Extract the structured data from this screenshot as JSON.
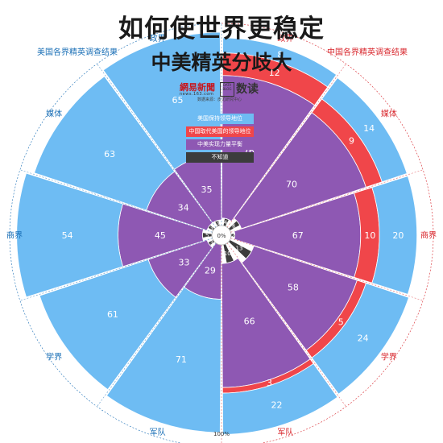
{
  "header": {
    "title": "如何使世界更稳定",
    "subtitle": "中美精英分歧大",
    "left_survey_label": "美国各界精英调查结果",
    "right_survey_label": "中国各界精英调查结果"
  },
  "brand": {
    "logo_text": "網易新聞",
    "logo_sub": "news.163.com",
    "data_box_text": "DATA BLOG",
    "product": "数读",
    "source": "数据来源：皮尤研究中心"
  },
  "colors": {
    "light_blue": "#6ebcf3",
    "red": "#f0464a",
    "purple": "#8e58b3",
    "dark": "#3c3c3c",
    "left_accent": "#1a6fb6",
    "right_accent": "#d8262c"
  },
  "chart_data": {
    "type": "radial-stacked-bar",
    "center_label": "0%",
    "outer_label": "100%",
    "categories": [
      "政界",
      "媒体",
      "商界",
      "学界",
      "军队"
    ],
    "legend": [
      {
        "label": "美国保持领导地位",
        "color": "#6ebcf3"
      },
      {
        "label": "中国取代美国的领导地位",
        "color": "#f0464a"
      },
      {
        "label": "中美实现力量平衡",
        "color": "#8e58b3"
      },
      {
        "label": "不知道",
        "color": "#3c3c3c"
      }
    ],
    "left": {
      "name": "美国各界精英调查结果",
      "series": [
        {
          "name": "美国保持领导地位",
          "values": [
            65,
            63,
            54,
            61,
            71
          ]
        },
        {
          "name": "中美实现力量平衡",
          "values": [
            35,
            34,
            45,
            33,
            29
          ]
        },
        {
          "name": "不知道",
          "values": [
            3,
            3,
            5,
            3,
            0
          ]
        }
      ]
    },
    "right": {
      "name": "中国各界精英调查结果",
      "series": [
        {
          "name": "美国保持领导地位",
          "values": [
            8,
            14,
            20,
            24,
            22
          ]
        },
        {
          "name": "中国取代美国的领导地位",
          "values": [
            12,
            9,
            10,
            5,
            3
          ]
        },
        {
          "name": "中美实现力量平衡",
          "values": [
            76,
            70,
            67,
            58,
            66
          ]
        },
        {
          "name": "不知道",
          "values": [
            4,
            6,
            2,
            13,
            10
          ]
        }
      ]
    }
  }
}
